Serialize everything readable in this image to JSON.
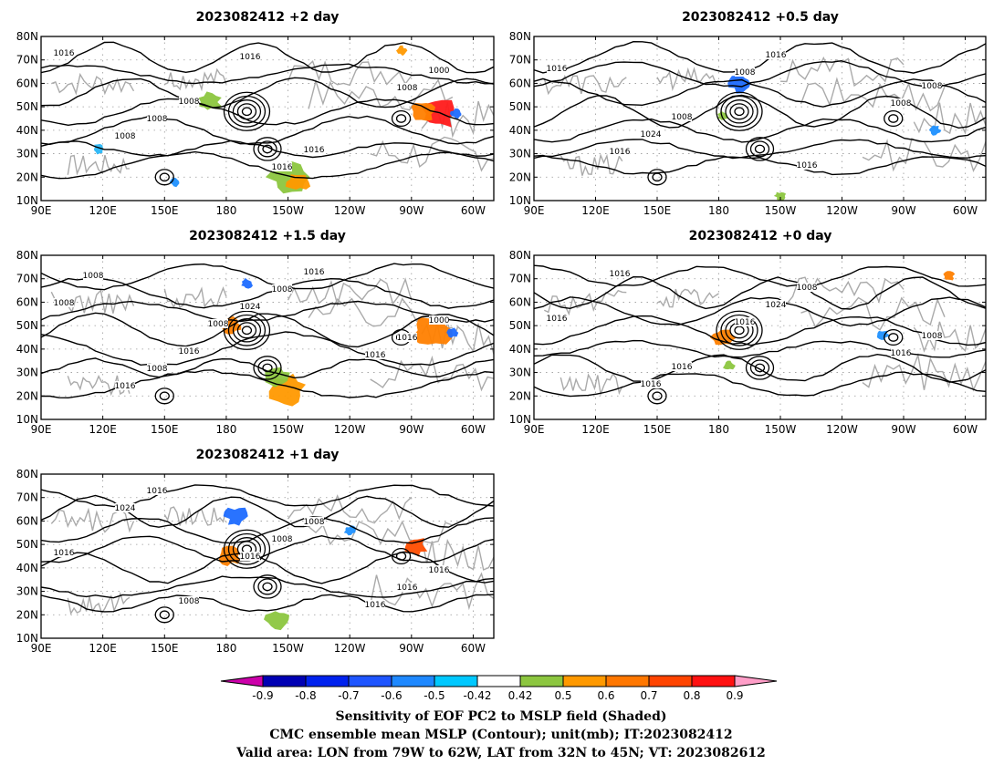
{
  "panels": [
    {
      "id": "p2",
      "title": "2023082412 +2 day",
      "contour_labels": [
        "1016",
        "1008",
        "1016",
        "1000",
        "1008",
        "1016",
        "1008",
        "1008",
        "1016"
      ],
      "blobs": [
        {
          "lon": -77,
          "lat": 47,
          "size": "large",
          "color": "#ff1a1a"
        },
        {
          "lon": -84,
          "lat": 48,
          "size": "medium",
          "color": "#ff7f00"
        },
        {
          "lon": -150,
          "lat": 20,
          "size": "large",
          "color": "#8cc63f"
        },
        {
          "lon": -145,
          "lat": 18,
          "size": "medium",
          "color": "#ff9900"
        },
        {
          "lon": 172,
          "lat": 52,
          "size": "medium",
          "color": "#8cc63f"
        },
        {
          "lon": 155,
          "lat": 18,
          "size": "small",
          "color": "#1e90ff"
        },
        {
          "lon": -95,
          "lat": 74,
          "size": "small",
          "color": "#ff9900"
        },
        {
          "lon": -68,
          "lat": 47,
          "size": "small",
          "color": "#1e6bff"
        },
        {
          "lon": 118,
          "lat": 32,
          "size": "small",
          "color": "#29b6f6"
        }
      ]
    },
    {
      "id": "p05",
      "title": "2023082412 +0.5 day",
      "contour_labels": [
        "1016",
        "1008",
        "1016",
        "1008",
        "1024",
        "1016",
        "1008",
        "1016",
        "1008"
      ],
      "blobs": [
        {
          "lon": -170,
          "lat": 60,
          "size": "medium",
          "color": "#1e6bff"
        },
        {
          "lon": -178,
          "lat": 46,
          "size": "small",
          "color": "#8cc63f"
        },
        {
          "lon": -150,
          "lat": 12,
          "size": "small",
          "color": "#8cc63f"
        },
        {
          "lon": -75,
          "lat": 40,
          "size": "small",
          "color": "#1e90ff"
        }
      ]
    },
    {
      "id": "p15",
      "title": "2023082412 +1.5 day",
      "contour_labels": [
        "1008",
        "1016",
        "1016",
        "1000",
        "1008",
        "1008",
        "1016",
        "1016",
        "1024",
        "1016",
        "1008",
        "1008"
      ],
      "blobs": [
        {
          "lon": -80,
          "lat": 48,
          "size": "large",
          "color": "#ff7f00"
        },
        {
          "lon": -150,
          "lat": 22,
          "size": "large",
          "color": "#ff9900"
        },
        {
          "lon": -155,
          "lat": 28,
          "size": "medium",
          "color": "#8cc63f"
        },
        {
          "lon": -178,
          "lat": 50,
          "size": "medium",
          "color": "#ff7f00"
        },
        {
          "lon": -170,
          "lat": 68,
          "size": "small",
          "color": "#1e6bff"
        },
        {
          "lon": -70,
          "lat": 47,
          "size": "small",
          "color": "#1e6bff"
        }
      ]
    },
    {
      "id": "p0",
      "title": "2023082412 +0 day",
      "contour_labels": [
        "1016",
        "1016",
        "1008",
        "1008",
        "1016",
        "1024",
        "1016",
        "1016",
        "1016"
      ],
      "blobs": [
        {
          "lon": -178,
          "lat": 45,
          "size": "medium",
          "color": "#ff7f00"
        },
        {
          "lon": -175,
          "lat": 33,
          "size": "small",
          "color": "#8cc63f"
        },
        {
          "lon": -100,
          "lat": 46,
          "size": "small",
          "color": "#1e90ff"
        },
        {
          "lon": -68,
          "lat": 71,
          "size": "small",
          "color": "#ff7f00"
        }
      ]
    },
    {
      "id": "p1",
      "title": "2023082412 +1 day",
      "contour_labels": [
        "1016",
        "1008",
        "1008",
        "1016",
        "1016",
        "1008",
        "1016",
        "1024",
        "1016",
        "1016"
      ],
      "blobs": [
        {
          "lon": -88,
          "lat": 49,
          "size": "medium",
          "color": "#ff4d00"
        },
        {
          "lon": -175,
          "lat": 62,
          "size": "medium",
          "color": "#1e6bff"
        },
        {
          "lon": -178,
          "lat": 45,
          "size": "medium",
          "color": "#ff7f00"
        },
        {
          "lon": -155,
          "lat": 18,
          "size": "medium",
          "color": "#8cc63f"
        },
        {
          "lon": -120,
          "lat": 56,
          "size": "small",
          "color": "#1e90ff"
        }
      ]
    }
  ],
  "axes": {
    "lat_ticks": [
      "80N",
      "70N",
      "60N",
      "50N",
      "40N",
      "30N",
      "20N",
      "10N"
    ],
    "lon_ticks": [
      "90E",
      "120E",
      "150E",
      "180",
      "150W",
      "120W",
      "90W",
      "60W"
    ],
    "lon_range": [
      "90E",
      "50W"
    ],
    "lat_range": [
      "10N",
      "80N"
    ]
  },
  "colorbar": {
    "ticks": [
      "-0.9",
      "-0.8",
      "-0.7",
      "-0.6",
      "-0.5",
      "-0.42",
      "0.42",
      "0.5",
      "0.6",
      "0.7",
      "0.8",
      "0.9"
    ],
    "colors": {
      "under": "#cc00aa",
      "bins": [
        "#0000b3",
        "#0022ee",
        "#1e55ff",
        "#1e88ff",
        "#00c8ff",
        "#ffffff",
        "#8cc63f",
        "#ff9900",
        "#ff7700",
        "#ff4400",
        "#ff1111"
      ],
      "over": "#ff9ec8"
    }
  },
  "caption": {
    "line1": "Sensitivity of EOF PC2 to MSLP field (Shaded)",
    "line2": "CMC ensemble mean MSLP (Contour); unit(mb); IT:2023082412",
    "line3": "Valid area: LON from 79W to 62W, LAT from 32N to 45N; VT: 2023082612"
  }
}
